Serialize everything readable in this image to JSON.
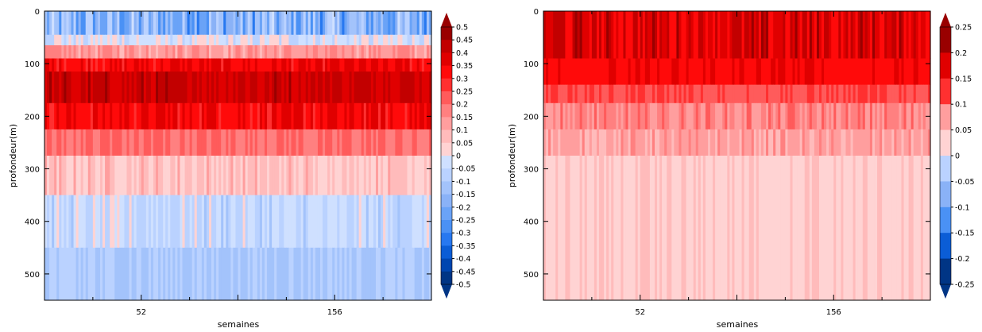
{
  "chart_data": [
    {
      "type": "heatmap",
      "xlabel": "semaines",
      "ylabel": "profondeur(m)",
      "x_ticks": [
        "52",
        "156"
      ],
      "y_ticks": [
        0,
        100,
        200,
        300,
        400,
        500
      ],
      "ylim": [
        550,
        0
      ],
      "xlim": [
        0,
        208
      ],
      "colorbar": {
        "min": -0.5,
        "max": 0.5,
        "step": 0.05,
        "tick_labels": [
          "0.5",
          "0.45",
          "0.4",
          "0.35",
          "0.3",
          "0.25",
          "0.2",
          "0.15",
          "0.1",
          "0.05",
          "0",
          "-0.05",
          "-0.1",
          "-0.15",
          "-0.2",
          "-0.25",
          "-0.3",
          "-0.35",
          "-0.4",
          "-0.45",
          "-0.5"
        ]
      },
      "layers": [
        {
          "depth_top": 0,
          "depth_bottom": 45,
          "mean": -0.18,
          "spread": 0.14
        },
        {
          "depth_top": 45,
          "depth_bottom": 65,
          "mean": -0.02,
          "spread": 0.06
        },
        {
          "depth_top": 65,
          "depth_bottom": 90,
          "mean": 0.14,
          "spread": 0.05
        },
        {
          "depth_top": 90,
          "depth_bottom": 115,
          "mean": 0.34,
          "spread": 0.05
        },
        {
          "depth_top": 115,
          "depth_bottom": 175,
          "mean": 0.41,
          "spread": 0.05
        },
        {
          "depth_top": 175,
          "depth_bottom": 225,
          "mean": 0.34,
          "spread": 0.05
        },
        {
          "depth_top": 225,
          "depth_bottom": 275,
          "mean": 0.2,
          "spread": 0.05
        },
        {
          "depth_top": 275,
          "depth_bottom": 350,
          "mean": 0.06,
          "spread": 0.05
        },
        {
          "depth_top": 350,
          "depth_bottom": 450,
          "mean": -0.05,
          "spread": 0.06
        },
        {
          "depth_top": 450,
          "depth_bottom": 550,
          "mean": -0.1,
          "spread": 0.05
        }
      ]
    },
    {
      "type": "heatmap",
      "xlabel": "semaines",
      "ylabel": "profondeur(m)",
      "x_ticks": [
        "52",
        "156"
      ],
      "y_ticks": [
        0,
        100,
        200,
        300,
        400,
        500
      ],
      "ylim": [
        550,
        0
      ],
      "xlim": [
        0,
        208
      ],
      "colorbar": {
        "min": -0.25,
        "max": 0.25,
        "step": 0.05,
        "tick_labels": [
          "0.25",
          "0.2",
          "0.15",
          "0.1",
          "0.05",
          "0",
          "-0.05",
          "-0.1",
          "-0.15",
          "-0.2",
          "-0.25"
        ]
      },
      "layers": [
        {
          "depth_top": 0,
          "depth_bottom": 90,
          "mean": 0.19,
          "spread": 0.04
        },
        {
          "depth_top": 90,
          "depth_bottom": 140,
          "mean": 0.17,
          "spread": 0.01
        },
        {
          "depth_top": 140,
          "depth_bottom": 175,
          "mean": 0.12,
          "spread": 0.02
        },
        {
          "depth_top": 175,
          "depth_bottom": 225,
          "mean": 0.08,
          "spread": 0.03
        },
        {
          "depth_top": 225,
          "depth_bottom": 275,
          "mean": 0.06,
          "spread": 0.02
        },
        {
          "depth_top": 275,
          "depth_bottom": 550,
          "mean": 0.02,
          "spread": 0.01
        }
      ]
    }
  ]
}
